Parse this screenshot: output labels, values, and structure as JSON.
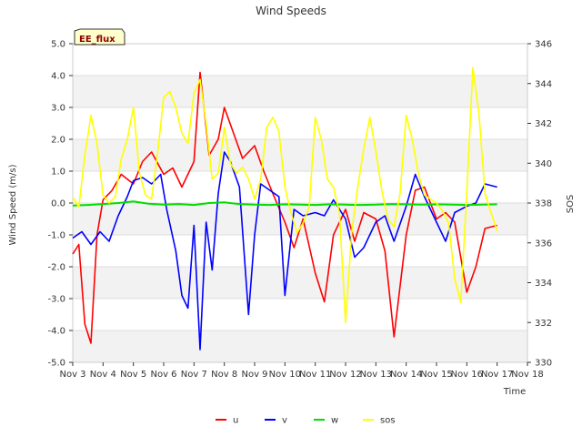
{
  "chart_data": {
    "type": "line",
    "title": "Wind Speeds",
    "badge": "EE_flux",
    "xlabel": "Time",
    "ylabel": "Wind Speed (m/s)",
    "y2label": "SOS",
    "x_ticks": [
      "Nov 3",
      "Nov 4",
      "Nov 5",
      "Nov 6",
      "Nov 7",
      "Nov 8",
      "Nov 9",
      "Nov 10",
      "Nov 11",
      "Nov 12",
      "Nov 13",
      "Nov 14",
      "Nov 15",
      "Nov 16",
      "Nov 17",
      "Nov 18"
    ],
    "xlim": [
      3,
      18
    ],
    "ylim": [
      -5.0,
      5.0
    ],
    "y_ticks": [
      "-5.0",
      "-4.0",
      "-3.0",
      "-2.0",
      "-1.0",
      "0.0",
      "1.0",
      "2.0",
      "3.0",
      "4.0",
      "5.0"
    ],
    "y2lim": [
      330,
      346
    ],
    "y2_ticks": [
      "330",
      "332",
      "334",
      "336",
      "338",
      "340",
      "342",
      "344",
      "346"
    ],
    "grid": true,
    "legend_position": "bottom-center",
    "series": [
      {
        "name": "u",
        "color": "#ff0000",
        "axis": "left",
        "x": [
          3.0,
          3.2,
          3.4,
          3.6,
          3.8,
          4.0,
          4.3,
          4.6,
          5.0,
          5.3,
          5.6,
          6.0,
          6.3,
          6.6,
          7.0,
          7.2,
          7.5,
          7.8,
          8.0,
          8.3,
          8.6,
          9.0,
          9.3,
          9.6,
          10.0,
          10.3,
          10.6,
          11.0,
          11.3,
          11.6,
          12.0,
          12.3,
          12.6,
          13.0,
          13.3,
          13.6,
          14.0,
          14.3,
          14.6,
          15.0,
          15.3,
          15.6,
          16.0,
          16.3,
          16.6,
          17.0
        ],
        "y": [
          -1.6,
          -1.3,
          -3.8,
          -4.4,
          -1.0,
          0.1,
          0.4,
          0.9,
          0.6,
          1.3,
          1.6,
          0.9,
          1.1,
          0.5,
          1.3,
          4.1,
          1.5,
          2.0,
          3.0,
          2.2,
          1.4,
          1.8,
          1.0,
          0.3,
          -0.6,
          -1.4,
          -0.5,
          -2.2,
          -3.1,
          -1.0,
          -0.2,
          -1.2,
          -0.3,
          -0.5,
          -1.5,
          -4.2,
          -1.0,
          0.4,
          0.5,
          -0.5,
          -0.3,
          -0.6,
          -2.8,
          -2.0,
          -0.8,
          -0.7
        ]
      },
      {
        "name": "v",
        "color": "#0000ff",
        "axis": "left",
        "x": [
          3.0,
          3.3,
          3.6,
          3.9,
          4.2,
          4.5,
          4.8,
          5.0,
          5.3,
          5.6,
          5.9,
          6.1,
          6.4,
          6.6,
          6.8,
          7.0,
          7.2,
          7.4,
          7.6,
          7.8,
          8.0,
          8.2,
          8.5,
          8.8,
          9.0,
          9.2,
          9.5,
          9.8,
          10.0,
          10.3,
          10.6,
          11.0,
          11.3,
          11.6,
          12.0,
          12.3,
          12.6,
          13.0,
          13.3,
          13.6,
          14.0,
          14.3,
          14.6,
          15.0,
          15.3,
          15.6,
          16.0,
          16.3,
          16.6,
          17.0
        ],
        "y": [
          -1.1,
          -0.9,
          -1.3,
          -0.9,
          -1.2,
          -0.4,
          0.2,
          0.7,
          0.8,
          0.6,
          0.9,
          -0.2,
          -1.5,
          -2.9,
          -3.3,
          -0.7,
          -4.6,
          -0.6,
          -2.1,
          0.3,
          1.6,
          1.3,
          0.5,
          -3.5,
          -1.0,
          0.6,
          0.4,
          0.2,
          -2.9,
          -0.2,
          -0.4,
          -0.3,
          -0.4,
          0.1,
          -0.5,
          -1.7,
          -1.4,
          -0.6,
          -0.4,
          -1.2,
          -0.1,
          0.9,
          0.2,
          -0.6,
          -1.2,
          -0.3,
          -0.1,
          0.0,
          0.6,
          0.5
        ]
      },
      {
        "name": "w",
        "color": "#00dd00",
        "axis": "left",
        "x": [
          3.0,
          3.5,
          4.0,
          4.5,
          5.0,
          5.5,
          6.0,
          6.5,
          7.0,
          7.5,
          8.0,
          8.5,
          9.0,
          9.5,
          10.0,
          10.5,
          11.0,
          11.5,
          12.0,
          12.5,
          13.0,
          13.5,
          14.0,
          14.5,
          15.0,
          15.5,
          16.0,
          16.5,
          17.0
        ],
        "y": [
          -0.08,
          -0.06,
          -0.03,
          0.0,
          0.05,
          -0.02,
          -0.05,
          -0.03,
          -0.06,
          0.0,
          0.02,
          -0.03,
          -0.05,
          -0.06,
          -0.04,
          -0.05,
          -0.06,
          -0.04,
          -0.05,
          -0.06,
          -0.05,
          -0.03,
          -0.04,
          -0.05,
          -0.04,
          -0.05,
          -0.06,
          -0.05,
          -0.04
        ]
      },
      {
        "name": "sos",
        "color": "#ffff00",
        "axis": "right",
        "x": [
          3.0,
          3.2,
          3.4,
          3.6,
          3.8,
          4.0,
          4.2,
          4.4,
          4.6,
          4.8,
          5.0,
          5.2,
          5.4,
          5.6,
          5.8,
          6.0,
          6.2,
          6.4,
          6.6,
          6.8,
          7.0,
          7.2,
          7.4,
          7.6,
          7.8,
          8.0,
          8.2,
          8.4,
          8.6,
          8.8,
          9.0,
          9.2,
          9.4,
          9.6,
          9.8,
          10.0,
          10.2,
          10.4,
          10.6,
          10.8,
          11.0,
          11.2,
          11.4,
          11.6,
          11.8,
          12.0,
          12.2,
          12.4,
          12.6,
          12.8,
          13.0,
          13.2,
          13.4,
          13.6,
          13.8,
          14.0,
          14.2,
          14.4,
          14.6,
          14.8,
          15.0,
          15.2,
          15.4,
          15.6,
          15.8,
          16.0,
          16.2,
          16.4,
          16.6,
          16.8,
          17.0
        ],
        "x_note": "",
        "y": [
          338.3,
          337.8,
          340.4,
          342.4,
          341.0,
          338.4,
          338.0,
          338.3,
          340.2,
          341.2,
          342.8,
          339.5,
          338.4,
          338.2,
          340.5,
          343.3,
          343.6,
          342.8,
          341.5,
          341.0,
          343.5,
          344.2,
          342.0,
          339.2,
          339.5,
          341.8,
          340.0,
          339.5,
          339.8,
          339.2,
          338.2,
          339.2,
          341.8,
          342.3,
          341.6,
          338.8,
          337.5,
          336.5,
          337.0,
          337.8,
          342.3,
          341.2,
          339.2,
          338.8,
          337.5,
          332.0,
          336.5,
          338.8,
          340.7,
          342.3,
          340.6,
          338.6,
          337.2,
          336.8,
          338.5,
          342.4,
          341.2,
          339.5,
          338.4,
          338.2,
          338.0,
          337.6,
          337.0,
          334.2,
          333.0,
          338.5,
          344.8,
          342.5,
          338.5,
          337.5,
          336.6
        ]
      }
    ]
  }
}
